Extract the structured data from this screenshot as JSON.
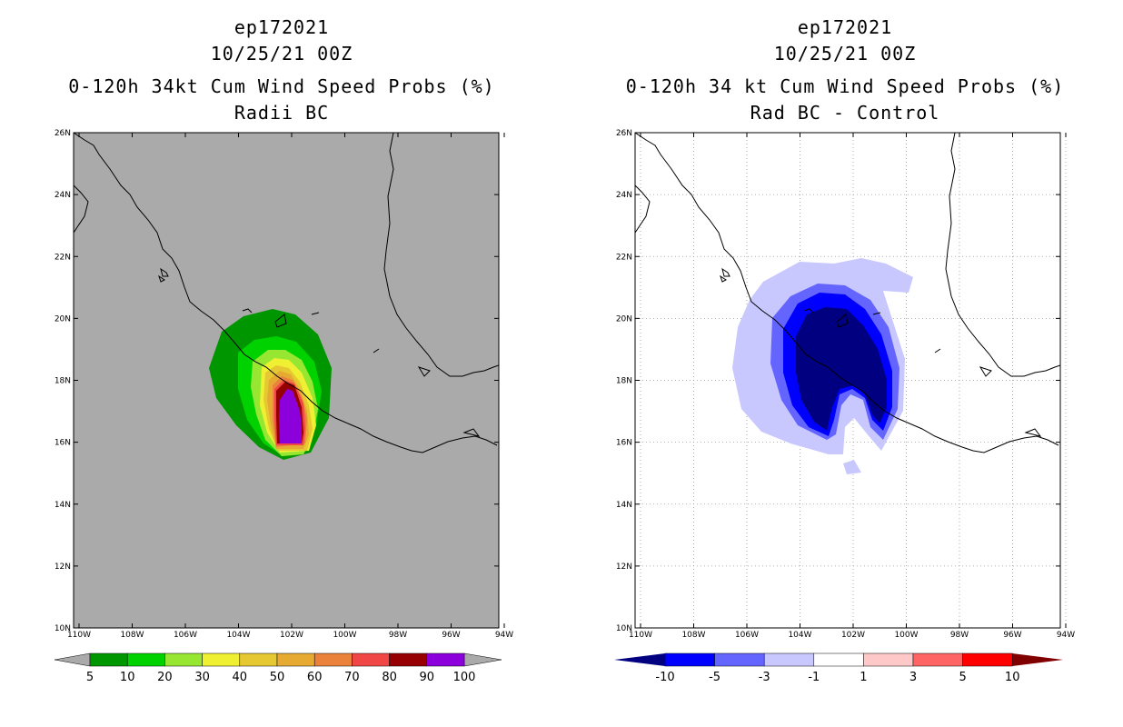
{
  "left_panel": {
    "title_line1": "ep172021",
    "title_line2": "10/25/21 00Z",
    "title_line3": "0-120h 34kt Cum Wind Speed Probs (%)",
    "title_line4": "Radii BC",
    "background_color": "#aaaaaa",
    "colorbar": {
      "labels": [
        "5",
        "10",
        "20",
        "30",
        "40",
        "50",
        "60",
        "70",
        "80",
        "90",
        "100"
      ],
      "colors": [
        "#009600",
        "#00d200",
        "#96e632",
        "#f0f032",
        "#e6c832",
        "#e6aa32",
        "#eb823c",
        "#f04646",
        "#960000",
        "#8c00dc"
      ]
    }
  },
  "right_panel": {
    "title_line1": "ep172021",
    "title_line2": "10/25/21 00Z",
    "title_line3": "0-120h 34 kt Cum Wind Speed Probs (%)",
    "title_line4": "Rad BC - Control",
    "background_color": "#ffffff",
    "colorbar": {
      "labels": [
        "-10",
        "-5",
        "-3",
        "-1",
        "1",
        "3",
        "5",
        "10"
      ],
      "colors": [
        "#000080",
        "#0000ff",
        "#6464ff",
        "#c8c8ff",
        "#ffffff",
        "#ffc8c8",
        "#ff6464",
        "#ff0000",
        "#800000"
      ]
    }
  },
  "axes": {
    "lat_labels": [
      "26N",
      "24N",
      "22N",
      "20N",
      "18N",
      "16N",
      "14N",
      "12N",
      "10N"
    ],
    "lon_labels": [
      "110W",
      "108W",
      "106W",
      "104W",
      "102W",
      "100W",
      "98W",
      "96W",
      "94W"
    ]
  }
}
